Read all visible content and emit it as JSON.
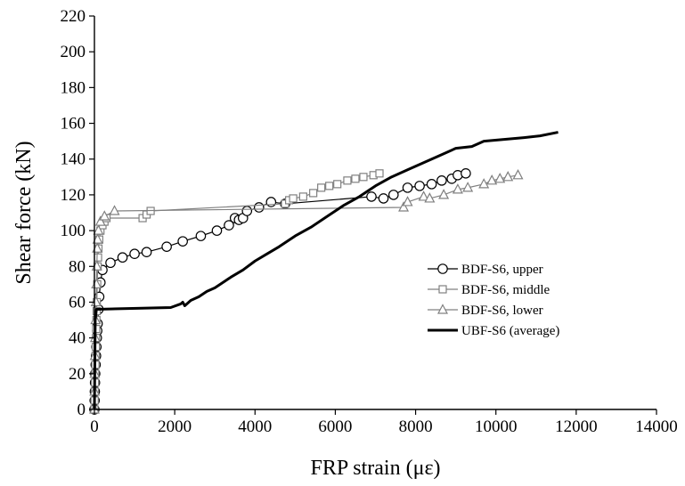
{
  "chart_data": {
    "type": "line",
    "title": "",
    "xlabel": "FRP strain (με)",
    "ylabel": "Shear force (kN)",
    "xlim": [
      0,
      14000
    ],
    "ylim": [
      0,
      220
    ],
    "xticks": [
      0,
      2000,
      4000,
      6000,
      8000,
      10000,
      12000,
      14000
    ],
    "yticks": [
      0,
      20,
      40,
      60,
      80,
      100,
      120,
      140,
      160,
      180,
      200,
      220
    ],
    "grid": false,
    "legend": "center-right",
    "series": [
      {
        "name": "BDF-S6, upper",
        "marker": "circle",
        "color": "#000000",
        "x": [
          0,
          5,
          10,
          15,
          20,
          30,
          40,
          50,
          60,
          70,
          80,
          100,
          120,
          150,
          200,
          400,
          700,
          1000,
          1300,
          1800,
          2200,
          2650,
          3050,
          3350,
          3500,
          3600,
          3700,
          3800,
          4100,
          4400,
          4750,
          6900,
          7200,
          7450,
          7800,
          8100,
          8400,
          8650,
          8900,
          9050,
          9250
        ],
        "y": [
          0,
          5,
          10,
          15,
          20,
          25,
          30,
          35,
          40,
          44,
          48,
          56,
          63,
          71,
          78,
          82,
          85,
          87,
          88,
          91,
          94,
          97,
          100,
          103,
          107,
          106,
          107,
          111,
          113,
          116,
          115,
          119,
          118,
          120,
          124,
          125,
          126,
          128,
          129,
          131,
          132
        ]
      },
      {
        "name": "BDF-S6, middle",
        "marker": "square",
        "color": "#808080",
        "x": [
          0,
          5,
          10,
          15,
          20,
          25,
          30,
          35,
          40,
          45,
          50,
          55,
          60,
          70,
          80,
          90,
          100,
          120,
          150,
          200,
          250,
          300,
          1200,
          1300,
          1400,
          4750,
          4850,
          4950,
          5200,
          5450,
          5650,
          5850,
          6050,
          6300,
          6500,
          6700,
          6950,
          7100
        ],
        "y": [
          0,
          5,
          10,
          15,
          20,
          25,
          30,
          35,
          40,
          45,
          50,
          55,
          60,
          70,
          80,
          85,
          90,
          95,
          100,
          103,
          105,
          107,
          107,
          109,
          111,
          115,
          117,
          118,
          119,
          121,
          124,
          125,
          126,
          128,
          129,
          130,
          131,
          132
        ]
      },
      {
        "name": "BDF-S6, lower",
        "marker": "triangle",
        "color": "#808080",
        "x": [
          0,
          5,
          10,
          15,
          20,
          30,
          40,
          50,
          60,
          70,
          80,
          100,
          150,
          250,
          500,
          7700,
          7800,
          8200,
          8350,
          8700,
          9050,
          9300,
          9700,
          9900,
          10100,
          10300,
          10550
        ],
        "y": [
          0,
          10,
          20,
          30,
          40,
          50,
          60,
          70,
          80,
          90,
          95,
          100,
          105,
          108,
          111,
          113,
          116,
          119,
          118,
          120,
          123,
          124,
          126,
          128,
          129,
          130,
          131
        ]
      },
      {
        "name": "UBF-S6 (average)",
        "marker": "none",
        "color": "#000000",
        "x": [
          0,
          20,
          50,
          1900,
          2150,
          2200,
          2250,
          2400,
          2600,
          2800,
          3000,
          3200,
          3400,
          3700,
          4000,
          4300,
          4600,
          5000,
          5400,
          5800,
          6200,
          6600,
          7000,
          7400,
          7800,
          8200,
          8600,
          9000,
          9400,
          9700,
          10200,
          10700,
          11100,
          11550
        ],
        "y": [
          0,
          50,
          56,
          57,
          59,
          60,
          58,
          61,
          63,
          66,
          68,
          71,
          74,
          78,
          83,
          87,
          91,
          97,
          102,
          108,
          114,
          119,
          125,
          130,
          134,
          138,
          142,
          146,
          147,
          150,
          151,
          152,
          153,
          155
        ]
      }
    ]
  }
}
